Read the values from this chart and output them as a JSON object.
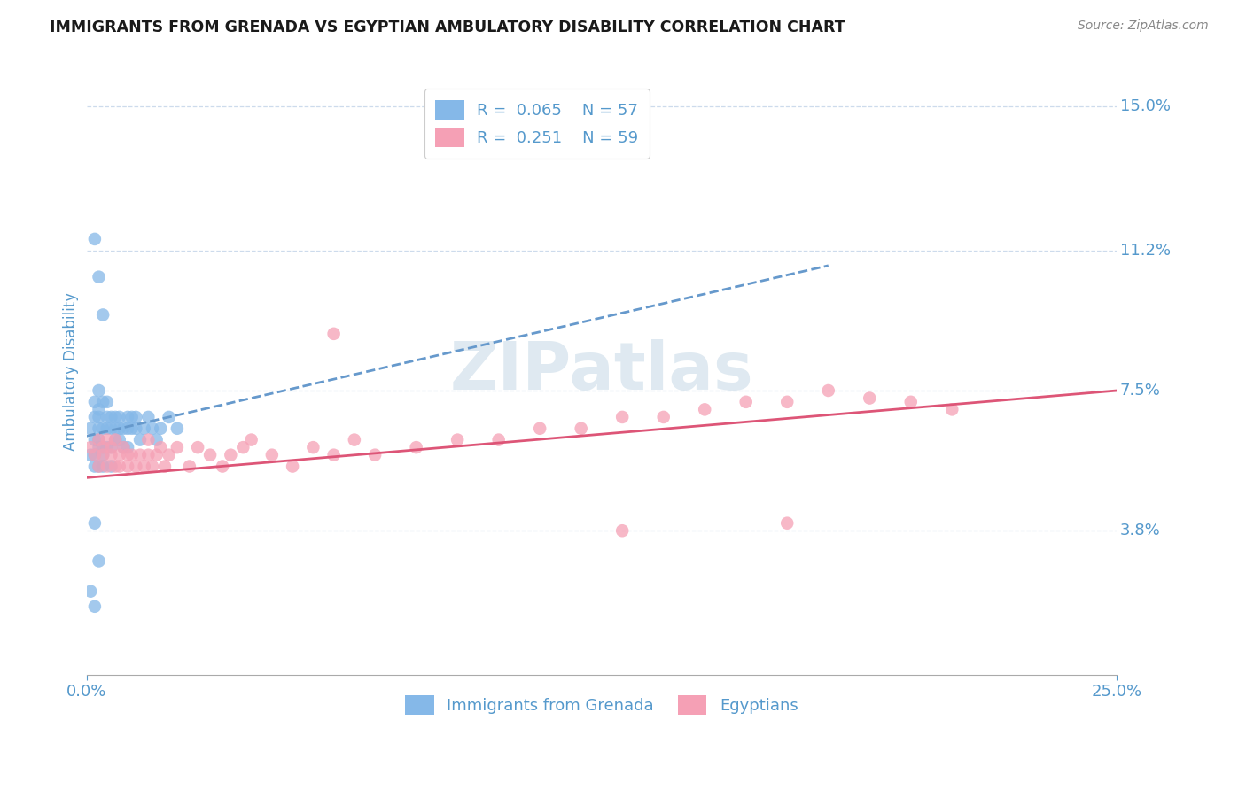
{
  "title": "IMMIGRANTS FROM GRENADA VS EGYPTIAN AMBULATORY DISABILITY CORRELATION CHART",
  "source": "Source: ZipAtlas.com",
  "ylabel": "Ambulatory Disability",
  "xlim": [
    0.0,
    0.25
  ],
  "ylim": [
    0.0,
    0.16
  ],
  "ytick_labels": [
    "3.8%",
    "7.5%",
    "11.2%",
    "15.0%"
  ],
  "ytick_positions": [
    0.038,
    0.075,
    0.112,
    0.15
  ],
  "watermark": "ZIPatlas",
  "legend_blue_r": "0.065",
  "legend_blue_n": "57",
  "legend_pink_r": "0.251",
  "legend_pink_n": "59",
  "blue_color": "#85b8e8",
  "pink_color": "#f5a0b5",
  "blue_line_color": "#6699cc",
  "pink_line_color": "#dd5577",
  "grid_color": "#c8d8ea",
  "title_color": "#1a1a1a",
  "label_color": "#5599cc",
  "background_color": "#ffffff",
  "blue_points_x": [
    0.001,
    0.001,
    0.002,
    0.002,
    0.002,
    0.002,
    0.002,
    0.003,
    0.003,
    0.003,
    0.003,
    0.003,
    0.003,
    0.003,
    0.004,
    0.004,
    0.004,
    0.004,
    0.004,
    0.005,
    0.005,
    0.005,
    0.005,
    0.006,
    0.006,
    0.006,
    0.006,
    0.007,
    0.007,
    0.007,
    0.008,
    0.008,
    0.008,
    0.009,
    0.009,
    0.01,
    0.01,
    0.01,
    0.011,
    0.011,
    0.012,
    0.012,
    0.013,
    0.014,
    0.015,
    0.016,
    0.017,
    0.018,
    0.02,
    0.022,
    0.002,
    0.003,
    0.004,
    0.002,
    0.003,
    0.001,
    0.002
  ],
  "blue_points_y": [
    0.065,
    0.058,
    0.068,
    0.072,
    0.062,
    0.058,
    0.055,
    0.075,
    0.07,
    0.065,
    0.06,
    0.055,
    0.068,
    0.062,
    0.072,
    0.065,
    0.06,
    0.058,
    0.055,
    0.068,
    0.065,
    0.06,
    0.072,
    0.068,
    0.065,
    0.06,
    0.055,
    0.068,
    0.065,
    0.062,
    0.065,
    0.068,
    0.062,
    0.065,
    0.06,
    0.068,
    0.065,
    0.06,
    0.068,
    0.065,
    0.065,
    0.068,
    0.062,
    0.065,
    0.068,
    0.065,
    0.062,
    0.065,
    0.068,
    0.065,
    0.115,
    0.105,
    0.095,
    0.04,
    0.03,
    0.022,
    0.018
  ],
  "pink_points_x": [
    0.001,
    0.002,
    0.003,
    0.003,
    0.004,
    0.004,
    0.005,
    0.005,
    0.006,
    0.006,
    0.007,
    0.007,
    0.008,
    0.008,
    0.009,
    0.01,
    0.01,
    0.011,
    0.012,
    0.013,
    0.014,
    0.015,
    0.015,
    0.016,
    0.017,
    0.018,
    0.019,
    0.02,
    0.022,
    0.025,
    0.027,
    0.03,
    0.033,
    0.035,
    0.038,
    0.04,
    0.045,
    0.05,
    0.055,
    0.06,
    0.065,
    0.07,
    0.08,
    0.09,
    0.1,
    0.11,
    0.12,
    0.13,
    0.14,
    0.15,
    0.16,
    0.17,
    0.18,
    0.19,
    0.2,
    0.21,
    0.06,
    0.13,
    0.17
  ],
  "pink_points_y": [
    0.06,
    0.058,
    0.062,
    0.055,
    0.06,
    0.058,
    0.062,
    0.055,
    0.06,
    0.058,
    0.055,
    0.062,
    0.058,
    0.055,
    0.06,
    0.058,
    0.055,
    0.058,
    0.055,
    0.058,
    0.055,
    0.058,
    0.062,
    0.055,
    0.058,
    0.06,
    0.055,
    0.058,
    0.06,
    0.055,
    0.06,
    0.058,
    0.055,
    0.058,
    0.06,
    0.062,
    0.058,
    0.055,
    0.06,
    0.058,
    0.062,
    0.058,
    0.06,
    0.062,
    0.062,
    0.065,
    0.065,
    0.068,
    0.068,
    0.07,
    0.072,
    0.072,
    0.075,
    0.073,
    0.072,
    0.07,
    0.09,
    0.038,
    0.04
  ],
  "blue_line": {
    "x0": 0.0,
    "x1": 0.18,
    "y0": 0.063,
    "y1": 0.108
  },
  "pink_line": {
    "x0": 0.0,
    "x1": 0.25,
    "y0": 0.052,
    "y1": 0.075
  }
}
